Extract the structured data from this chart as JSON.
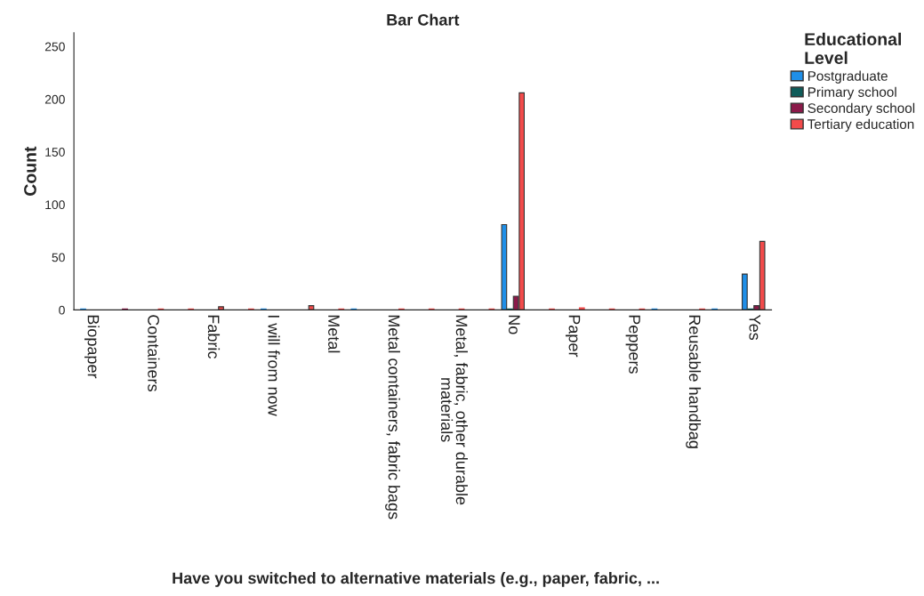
{
  "chart_data": {
    "type": "bar",
    "title": "Bar Chart",
    "xlabel": "Have you switched to alternative materials (e.g., paper, fabric, ...",
    "ylabel": "Count",
    "legend_title": "Educational\nLevel",
    "categories": [
      "Biopaper",
      null,
      "Containers",
      null,
      "Fabric",
      null,
      "I will from now",
      null,
      "Metal",
      null,
      "Metal containers, fabric bags",
      null,
      "Metal, fabric, other durable\nmaterials",
      null,
      "No",
      null,
      "Paper",
      null,
      "Peppers",
      null,
      "Reusable handbag",
      null,
      "Yes"
    ],
    "series": [
      {
        "name": "Postgraduate",
        "color": "#1f8fe8",
        "values": [
          1,
          null,
          null,
          null,
          null,
          null,
          1,
          null,
          null,
          1,
          null,
          null,
          null,
          null,
          81,
          null,
          null,
          null,
          null,
          1,
          null,
          1,
          34
        ]
      },
      {
        "name": "Primary school",
        "color": "#0f5c5a",
        "values": [
          null,
          null,
          null,
          null,
          null,
          null,
          null,
          null,
          null,
          null,
          null,
          null,
          null,
          null,
          1,
          null,
          null,
          null,
          null,
          null,
          null,
          null,
          1
        ]
      },
      {
        "name": "Secondary school",
        "color": "#8b1a4a",
        "values": [
          null,
          1,
          null,
          null,
          null,
          null,
          null,
          null,
          null,
          null,
          null,
          null,
          null,
          null,
          13,
          null,
          null,
          null,
          null,
          null,
          null,
          null,
          4
        ]
      },
      {
        "name": "Tertiary education",
        "color": "#f24b4b",
        "values": [
          null,
          null,
          1,
          1,
          3,
          1,
          null,
          4,
          1,
          null,
          1,
          1,
          1,
          1,
          206,
          1,
          2,
          1,
          1,
          null,
          1,
          null,
          65
        ]
      }
    ],
    "ylim": [
      0,
      263
    ],
    "yticks": [
      0,
      50,
      100,
      150,
      200,
      250
    ],
    "legend": "right"
  }
}
